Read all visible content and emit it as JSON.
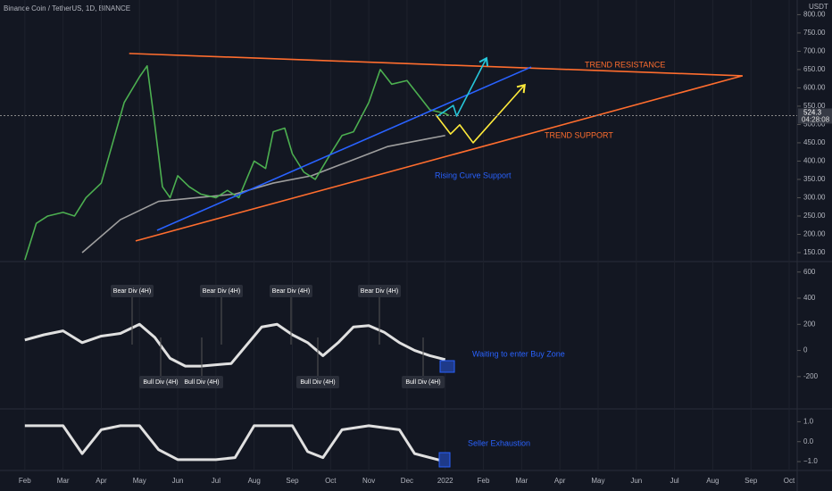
{
  "chart_data": [
    {
      "type": "line",
      "title": "Binance Coin / TetherUS, 1D, BINANCE",
      "currency": "USDT",
      "last_price": 524.3,
      "countdown": "04:28:08",
      "xlim": [
        1.35,
        22.21
      ],
      "xticks": [
        {
          "value": 2,
          "label": "Feb"
        },
        {
          "value": 3,
          "label": "Mar"
        },
        {
          "value": 4,
          "label": "Apr"
        },
        {
          "value": 5,
          "label": "May"
        },
        {
          "value": 6,
          "label": "Jun"
        },
        {
          "value": 7,
          "label": "Jul"
        },
        {
          "value": 8,
          "label": "Aug"
        },
        {
          "value": 9,
          "label": "Sep"
        },
        {
          "value": 10,
          "label": "Oct"
        },
        {
          "value": 11,
          "label": "Nov"
        },
        {
          "value": 12,
          "label": "Dec"
        },
        {
          "value": 13,
          "label": "2022"
        },
        {
          "value": 14,
          "label": "Feb"
        },
        {
          "value": 15,
          "label": "Mar"
        },
        {
          "value": 16,
          "label": "Apr"
        },
        {
          "value": 17,
          "label": "May"
        },
        {
          "value": 18,
          "label": "Jun"
        },
        {
          "value": 19,
          "label": "Jul"
        },
        {
          "value": 20,
          "label": "Aug"
        },
        {
          "value": 21,
          "label": "Sep"
        },
        {
          "value": 22,
          "label": "Oct"
        }
      ],
      "ylim": [
        128,
        840
      ],
      "yticks": [
        {
          "value": 150,
          "label": "150.00"
        },
        {
          "value": 200,
          "label": "200.00"
        },
        {
          "value": 250,
          "label": "250.00"
        },
        {
          "value": 300,
          "label": "300.00"
        },
        {
          "value": 350,
          "label": "350.00"
        },
        {
          "value": 400,
          "label": "400.00"
        },
        {
          "value": 450,
          "label": "450.00"
        },
        {
          "value": 500,
          "label": "500.00"
        },
        {
          "value": 550,
          "label": "550.00"
        },
        {
          "value": 600,
          "label": "600.00"
        },
        {
          "value": 650,
          "label": "650.00"
        },
        {
          "value": 700,
          "label": "700.00"
        },
        {
          "value": 750,
          "label": "750.00"
        },
        {
          "value": 800,
          "label": "800.00"
        }
      ],
      "lines": [
        {
          "color": "#9e9e9e",
          "x": [
            3.5,
            4.5,
            5.5,
            6.5,
            7.5,
            8.5,
            9.5,
            10.5,
            11.5,
            12.5,
            13.0
          ],
          "values": [
            150,
            240,
            290,
            300,
            310,
            340,
            360,
            400,
            440,
            460,
            470
          ]
        },
        {
          "color": "#4caf50",
          "x": [
            2.0,
            2.3,
            2.6,
            3.0,
            3.3,
            3.6,
            4.0,
            4.3,
            4.6,
            5.0,
            5.2,
            5.4,
            5.6,
            5.8,
            6.0,
            6.3,
            6.6,
            7.0,
            7.3,
            7.6,
            8.0,
            8.3,
            8.5,
            8.8,
            9.0,
            9.3,
            9.6,
            10.0,
            10.3,
            10.6,
            11.0,
            11.3,
            11.6,
            12.0,
            12.3,
            12.6,
            13.0,
            13.1
          ],
          "values": [
            130,
            230,
            250,
            260,
            250,
            300,
            340,
            450,
            560,
            630,
            660,
            500,
            330,
            300,
            360,
            330,
            310,
            300,
            320,
            300,
            400,
            380,
            480,
            490,
            420,
            370,
            350,
            420,
            470,
            480,
            560,
            650,
            610,
            620,
            580,
            540,
            530,
            524.3
          ]
        },
        {
          "color": "#ff6d2e",
          "x": [
            4.73,
            20.78
          ],
          "values": [
            694,
            633
          ]
        },
        {
          "color": "#ff6d2e",
          "x": [
            4.9,
            20.78
          ],
          "values": [
            182,
            633
          ]
        },
        {
          "color": "#2962ff",
          "x": [
            5.46,
            15.25
          ],
          "values": [
            211,
            657
          ]
        },
        {
          "color": "#26c6da",
          "x": [
            12.8,
            13.21,
            13.3,
            14.08
          ],
          "values": [
            523,
            552,
            523,
            681
          ]
        },
        {
          "color": "#ffeb3b",
          "x": [
            12.75,
            13.14,
            13.38,
            13.73,
            15.08
          ],
          "values": [
            527,
            474,
            499,
            450,
            608
          ]
        }
      ],
      "annotations": [
        "TREND RESISTANCE",
        "TREND SUPPORT",
        "Rising Curve Support"
      ]
    },
    {
      "type": "line",
      "ylim": [
        -440,
        680
      ],
      "yticks": [
        600,
        400,
        200,
        0,
        -200
      ],
      "lines": [
        {
          "color": "#e0e0e0",
          "x": [
            2.0,
            2.5,
            3.0,
            3.5,
            4.0,
            4.5,
            5.0,
            5.4,
            5.8,
            6.2,
            6.6,
            7.0,
            7.4,
            7.8,
            8.2,
            8.6,
            9.0,
            9.4,
            9.8,
            10.2,
            10.6,
            11.0,
            11.4,
            11.8,
            12.2,
            12.6,
            13.0
          ],
          "values": [
            80,
            120,
            150,
            60,
            110,
            130,
            200,
            100,
            -60,
            -120,
            -120,
            -110,
            -100,
            40,
            180,
            200,
            120,
            60,
            -40,
            60,
            180,
            190,
            140,
            60,
            0,
            -40,
            -70
          ]
        }
      ],
      "annotations": [
        "Bear Div (4H)",
        "Bear Div (4H)",
        "Bear Div (4H)",
        "Bear Div (4H)",
        "Bull Div (4H)",
        "Bull Div (4H)",
        "Bull Div (4H)",
        "Bull Div (4H)",
        "Waiting to enter Buy Zone"
      ]
    },
    {
      "type": "line",
      "ylim": [
        -1.4,
        1.6
      ],
      "yticks": [
        {
          "value": 1,
          "label": "1.0"
        },
        {
          "value": 0,
          "label": "0.0"
        },
        {
          "value": -1,
          "label": "−1.0"
        }
      ],
      "lines": [
        {
          "color": "#e0e0e0",
          "x": [
            2.0,
            3.0,
            3.5,
            4.0,
            4.5,
            5.0,
            5.5,
            6.0,
            7.0,
            7.5,
            8.0,
            9.0,
            9.4,
            9.8,
            10.3,
            11.0,
            11.8,
            12.2,
            13.0
          ],
          "values": [
            0.8,
            0.8,
            -0.6,
            0.6,
            0.8,
            0.8,
            -0.4,
            -0.9,
            -0.9,
            -0.8,
            0.8,
            0.8,
            -0.5,
            -0.8,
            0.6,
            0.8,
            0.6,
            -0.6,
            -1.0
          ]
        }
      ],
      "annotations": [
        "Seller Exhaustion"
      ]
    }
  ]
}
